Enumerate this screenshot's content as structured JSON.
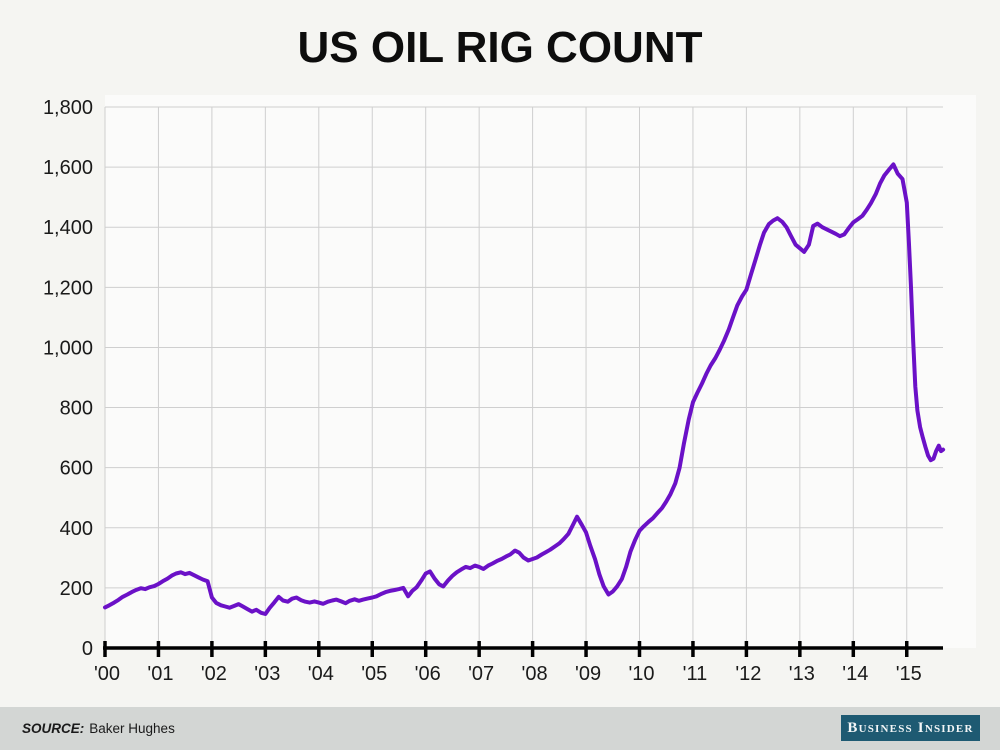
{
  "page": {
    "title": "US OIL RIG COUNT"
  },
  "footer": {
    "source_label": "SOURCE:",
    "source_value": "Baker Hughes",
    "brand": "Business Insider"
  },
  "colors": {
    "page_bg": "#f5f5f2",
    "plot_bg": "#fbfbfa",
    "grid": "#cfcfcf",
    "axis": "#000000",
    "line": "#6b11c7",
    "tick_label": "#1a1a1a",
    "footer_bg": "#d3d6d4",
    "badge_bg": "#1e5a72",
    "badge_text": "#f3f6f7"
  },
  "chart_data": {
    "type": "line",
    "title": "US OIL RIG COUNT",
    "xlabel": "",
    "ylabel": "",
    "grid": true,
    "legend_position": "none",
    "ylim": [
      0,
      1800
    ],
    "xlim": [
      2000,
      2015.69
    ],
    "y_ticks": [
      0,
      200,
      400,
      600,
      800,
      1000,
      1200,
      1400,
      1600,
      1800
    ],
    "y_tick_labels": [
      "0",
      "200",
      "400",
      "600",
      "800",
      "1,000",
      "1,200",
      "1,400",
      "1,600",
      "1,800"
    ],
    "x_tick_years": [
      2000,
      2001,
      2002,
      2003,
      2004,
      2005,
      2006,
      2007,
      2008,
      2009,
      2010,
      2011,
      2012,
      2013,
      2014,
      2015
    ],
    "x_tick_labels": [
      "'00",
      "'01",
      "'02",
      "'03",
      "'04",
      "'05",
      "'06",
      "'07",
      "'08",
      "'09",
      "'10",
      "'11",
      "'12",
      "'13",
      "'14",
      "'15"
    ],
    "series": [
      {
        "name": "US oil rig count",
        "points": [
          [
            2000.0,
            135
          ],
          [
            2000.08,
            142
          ],
          [
            2000.17,
            151
          ],
          [
            2000.25,
            160
          ],
          [
            2000.33,
            170
          ],
          [
            2000.42,
            178
          ],
          [
            2000.5,
            186
          ],
          [
            2000.58,
            193
          ],
          [
            2000.67,
            199
          ],
          [
            2000.75,
            196
          ],
          [
            2000.83,
            202
          ],
          [
            2000.92,
            206
          ],
          [
            2001.0,
            213
          ],
          [
            2001.08,
            222
          ],
          [
            2001.17,
            231
          ],
          [
            2001.25,
            241
          ],
          [
            2001.33,
            248
          ],
          [
            2001.42,
            252
          ],
          [
            2001.5,
            246
          ],
          [
            2001.58,
            250
          ],
          [
            2001.67,
            242
          ],
          [
            2001.75,
            235
          ],
          [
            2001.83,
            228
          ],
          [
            2001.92,
            222
          ],
          [
            2002.0,
            168
          ],
          [
            2002.08,
            150
          ],
          [
            2002.17,
            142
          ],
          [
            2002.25,
            138
          ],
          [
            2002.33,
            134
          ],
          [
            2002.42,
            140
          ],
          [
            2002.5,
            146
          ],
          [
            2002.58,
            138
          ],
          [
            2002.67,
            129
          ],
          [
            2002.75,
            121
          ],
          [
            2002.83,
            127
          ],
          [
            2002.92,
            117
          ],
          [
            2003.0,
            113
          ],
          [
            2003.08,
            133
          ],
          [
            2003.17,
            152
          ],
          [
            2003.25,
            170
          ],
          [
            2003.33,
            158
          ],
          [
            2003.42,
            154
          ],
          [
            2003.5,
            164
          ],
          [
            2003.58,
            168
          ],
          [
            2003.67,
            159
          ],
          [
            2003.75,
            154
          ],
          [
            2003.83,
            151
          ],
          [
            2003.92,
            155
          ],
          [
            2004.0,
            151
          ],
          [
            2004.08,
            147
          ],
          [
            2004.17,
            154
          ],
          [
            2004.25,
            158
          ],
          [
            2004.33,
            161
          ],
          [
            2004.42,
            155
          ],
          [
            2004.5,
            149
          ],
          [
            2004.58,
            157
          ],
          [
            2004.67,
            162
          ],
          [
            2004.75,
            157
          ],
          [
            2004.83,
            161
          ],
          [
            2004.92,
            165
          ],
          [
            2005.0,
            168
          ],
          [
            2005.08,
            172
          ],
          [
            2005.17,
            180
          ],
          [
            2005.25,
            186
          ],
          [
            2005.33,
            190
          ],
          [
            2005.42,
            193
          ],
          [
            2005.5,
            196
          ],
          [
            2005.58,
            200
          ],
          [
            2005.67,
            172
          ],
          [
            2005.75,
            190
          ],
          [
            2005.83,
            202
          ],
          [
            2005.92,
            225
          ],
          [
            2006.0,
            248
          ],
          [
            2006.08,
            255
          ],
          [
            2006.17,
            230
          ],
          [
            2006.25,
            212
          ],
          [
            2006.33,
            205
          ],
          [
            2006.42,
            225
          ],
          [
            2006.5,
            240
          ],
          [
            2006.58,
            252
          ],
          [
            2006.67,
            262
          ],
          [
            2006.75,
            270
          ],
          [
            2006.83,
            266
          ],
          [
            2006.92,
            274
          ],
          [
            2007.0,
            270
          ],
          [
            2007.08,
            263
          ],
          [
            2007.17,
            274
          ],
          [
            2007.25,
            281
          ],
          [
            2007.33,
            289
          ],
          [
            2007.42,
            296
          ],
          [
            2007.5,
            304
          ],
          [
            2007.58,
            311
          ],
          [
            2007.67,
            324
          ],
          [
            2007.75,
            317
          ],
          [
            2007.83,
            301
          ],
          [
            2007.92,
            291
          ],
          [
            2008.0,
            296
          ],
          [
            2008.08,
            301
          ],
          [
            2008.17,
            311
          ],
          [
            2008.25,
            319
          ],
          [
            2008.33,
            327
          ],
          [
            2008.42,
            338
          ],
          [
            2008.5,
            348
          ],
          [
            2008.58,
            362
          ],
          [
            2008.67,
            380
          ],
          [
            2008.75,
            408
          ],
          [
            2008.83,
            437
          ],
          [
            2008.92,
            410
          ],
          [
            2009.0,
            385
          ],
          [
            2009.08,
            340
          ],
          [
            2009.17,
            295
          ],
          [
            2009.25,
            245
          ],
          [
            2009.33,
            205
          ],
          [
            2009.42,
            178
          ],
          [
            2009.5,
            188
          ],
          [
            2009.58,
            205
          ],
          [
            2009.67,
            230
          ],
          [
            2009.75,
            270
          ],
          [
            2009.83,
            320
          ],
          [
            2009.92,
            360
          ],
          [
            2010.0,
            390
          ],
          [
            2010.08,
            405
          ],
          [
            2010.17,
            420
          ],
          [
            2010.25,
            432
          ],
          [
            2010.33,
            448
          ],
          [
            2010.42,
            465
          ],
          [
            2010.5,
            487
          ],
          [
            2010.58,
            512
          ],
          [
            2010.67,
            548
          ],
          [
            2010.75,
            600
          ],
          [
            2010.83,
            680
          ],
          [
            2010.92,
            760
          ],
          [
            2011.0,
            818
          ],
          [
            2011.08,
            848
          ],
          [
            2011.17,
            880
          ],
          [
            2011.25,
            912
          ],
          [
            2011.33,
            940
          ],
          [
            2011.42,
            965
          ],
          [
            2011.5,
            992
          ],
          [
            2011.58,
            1022
          ],
          [
            2011.67,
            1060
          ],
          [
            2011.75,
            1100
          ],
          [
            2011.83,
            1140
          ],
          [
            2011.92,
            1170
          ],
          [
            2012.0,
            1192
          ],
          [
            2012.08,
            1240
          ],
          [
            2012.17,
            1292
          ],
          [
            2012.25,
            1340
          ],
          [
            2012.33,
            1382
          ],
          [
            2012.42,
            1410
          ],
          [
            2012.5,
            1422
          ],
          [
            2012.58,
            1430
          ],
          [
            2012.67,
            1418
          ],
          [
            2012.75,
            1400
          ],
          [
            2012.83,
            1372
          ],
          [
            2012.92,
            1342
          ],
          [
            2013.0,
            1330
          ],
          [
            2013.08,
            1318
          ],
          [
            2013.17,
            1342
          ],
          [
            2013.25,
            1404
          ],
          [
            2013.33,
            1412
          ],
          [
            2013.42,
            1400
          ],
          [
            2013.5,
            1393
          ],
          [
            2013.58,
            1386
          ],
          [
            2013.67,
            1378
          ],
          [
            2013.75,
            1370
          ],
          [
            2013.83,
            1376
          ],
          [
            2013.92,
            1398
          ],
          [
            2014.0,
            1416
          ],
          [
            2014.08,
            1426
          ],
          [
            2014.17,
            1438
          ],
          [
            2014.25,
            1458
          ],
          [
            2014.33,
            1480
          ],
          [
            2014.42,
            1510
          ],
          [
            2014.5,
            1545
          ],
          [
            2014.58,
            1572
          ],
          [
            2014.67,
            1592
          ],
          [
            2014.75,
            1609
          ],
          [
            2014.83,
            1578
          ],
          [
            2014.92,
            1560
          ],
          [
            2015.0,
            1482
          ],
          [
            2015.04,
            1350
          ],
          [
            2015.08,
            1200
          ],
          [
            2015.12,
            1020
          ],
          [
            2015.16,
            870
          ],
          [
            2015.2,
            790
          ],
          [
            2015.25,
            735
          ],
          [
            2015.3,
            700
          ],
          [
            2015.35,
            668
          ],
          [
            2015.4,
            640
          ],
          [
            2015.45,
            625
          ],
          [
            2015.5,
            630
          ],
          [
            2015.55,
            655
          ],
          [
            2015.6,
            673
          ],
          [
            2015.64,
            655
          ],
          [
            2015.68,
            660
          ]
        ]
      }
    ]
  }
}
